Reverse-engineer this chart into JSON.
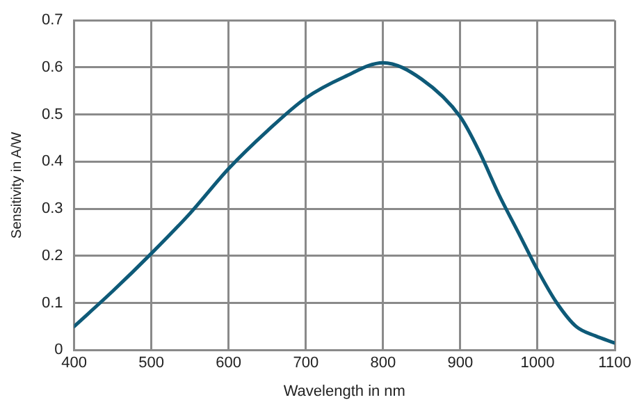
{
  "chart_data": {
    "type": "line",
    "xlabel": "Wavelength in nm",
    "ylabel": "Sensitivity in A/W",
    "x": [
      400,
      450,
      500,
      550,
      600,
      650,
      700,
      750,
      800,
      850,
      900,
      925,
      950,
      975,
      1000,
      1025,
      1050,
      1075,
      1100
    ],
    "series": [
      {
        "color": "#0e5a78",
        "values": [
          0.05,
          0.125,
          0.205,
          0.29,
          0.385,
          0.465,
          0.535,
          0.58,
          0.61,
          0.575,
          0.495,
          0.42,
          0.33,
          0.25,
          0.17,
          0.1,
          0.05,
          0.03,
          0.015
        ]
      }
    ],
    "xlim": [
      400,
      1100
    ],
    "xticks": [
      400,
      500,
      600,
      700,
      800,
      900,
      1000,
      1100
    ],
    "ylim": [
      0,
      0.7
    ],
    "yticks": [
      0,
      0.1,
      0.2,
      0.3,
      0.4,
      0.5,
      0.6,
      0.7
    ],
    "grid": true,
    "legend": false,
    "marker": "none",
    "line_style": "solid"
  }
}
